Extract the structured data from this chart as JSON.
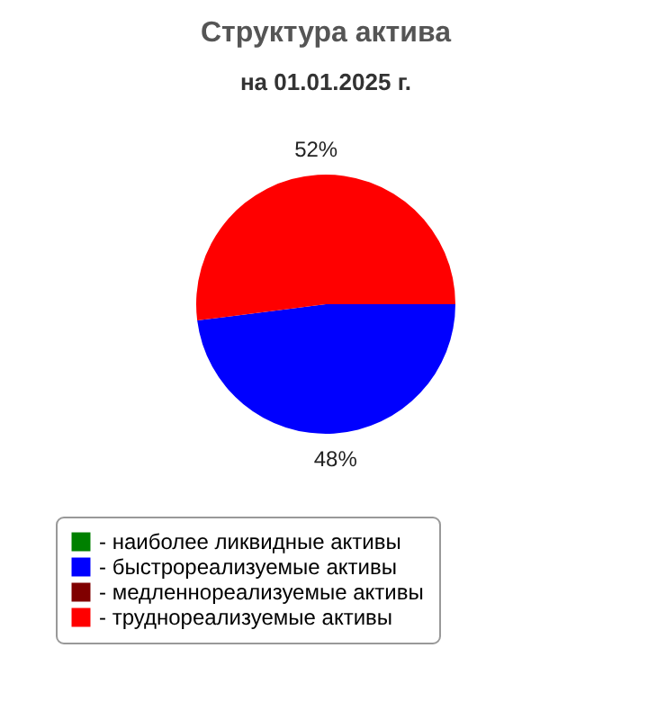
{
  "chart_data": {
    "type": "pie",
    "title": "Структура актива",
    "subtitle": "на 01.01.2025 г.",
    "categories": [
      "- наиболее ликвидные активы",
      "- быстрореализуемые активы",
      "- медленнореализуемые активы",
      "- труднореализуемые активы"
    ],
    "values": [
      0,
      48,
      0,
      52
    ],
    "colors": [
      "#008000",
      "#0000ff",
      "#800000",
      "#ff0000"
    ],
    "value_labels": [
      null,
      "48%",
      null,
      "52%"
    ],
    "legend": "bottom"
  }
}
